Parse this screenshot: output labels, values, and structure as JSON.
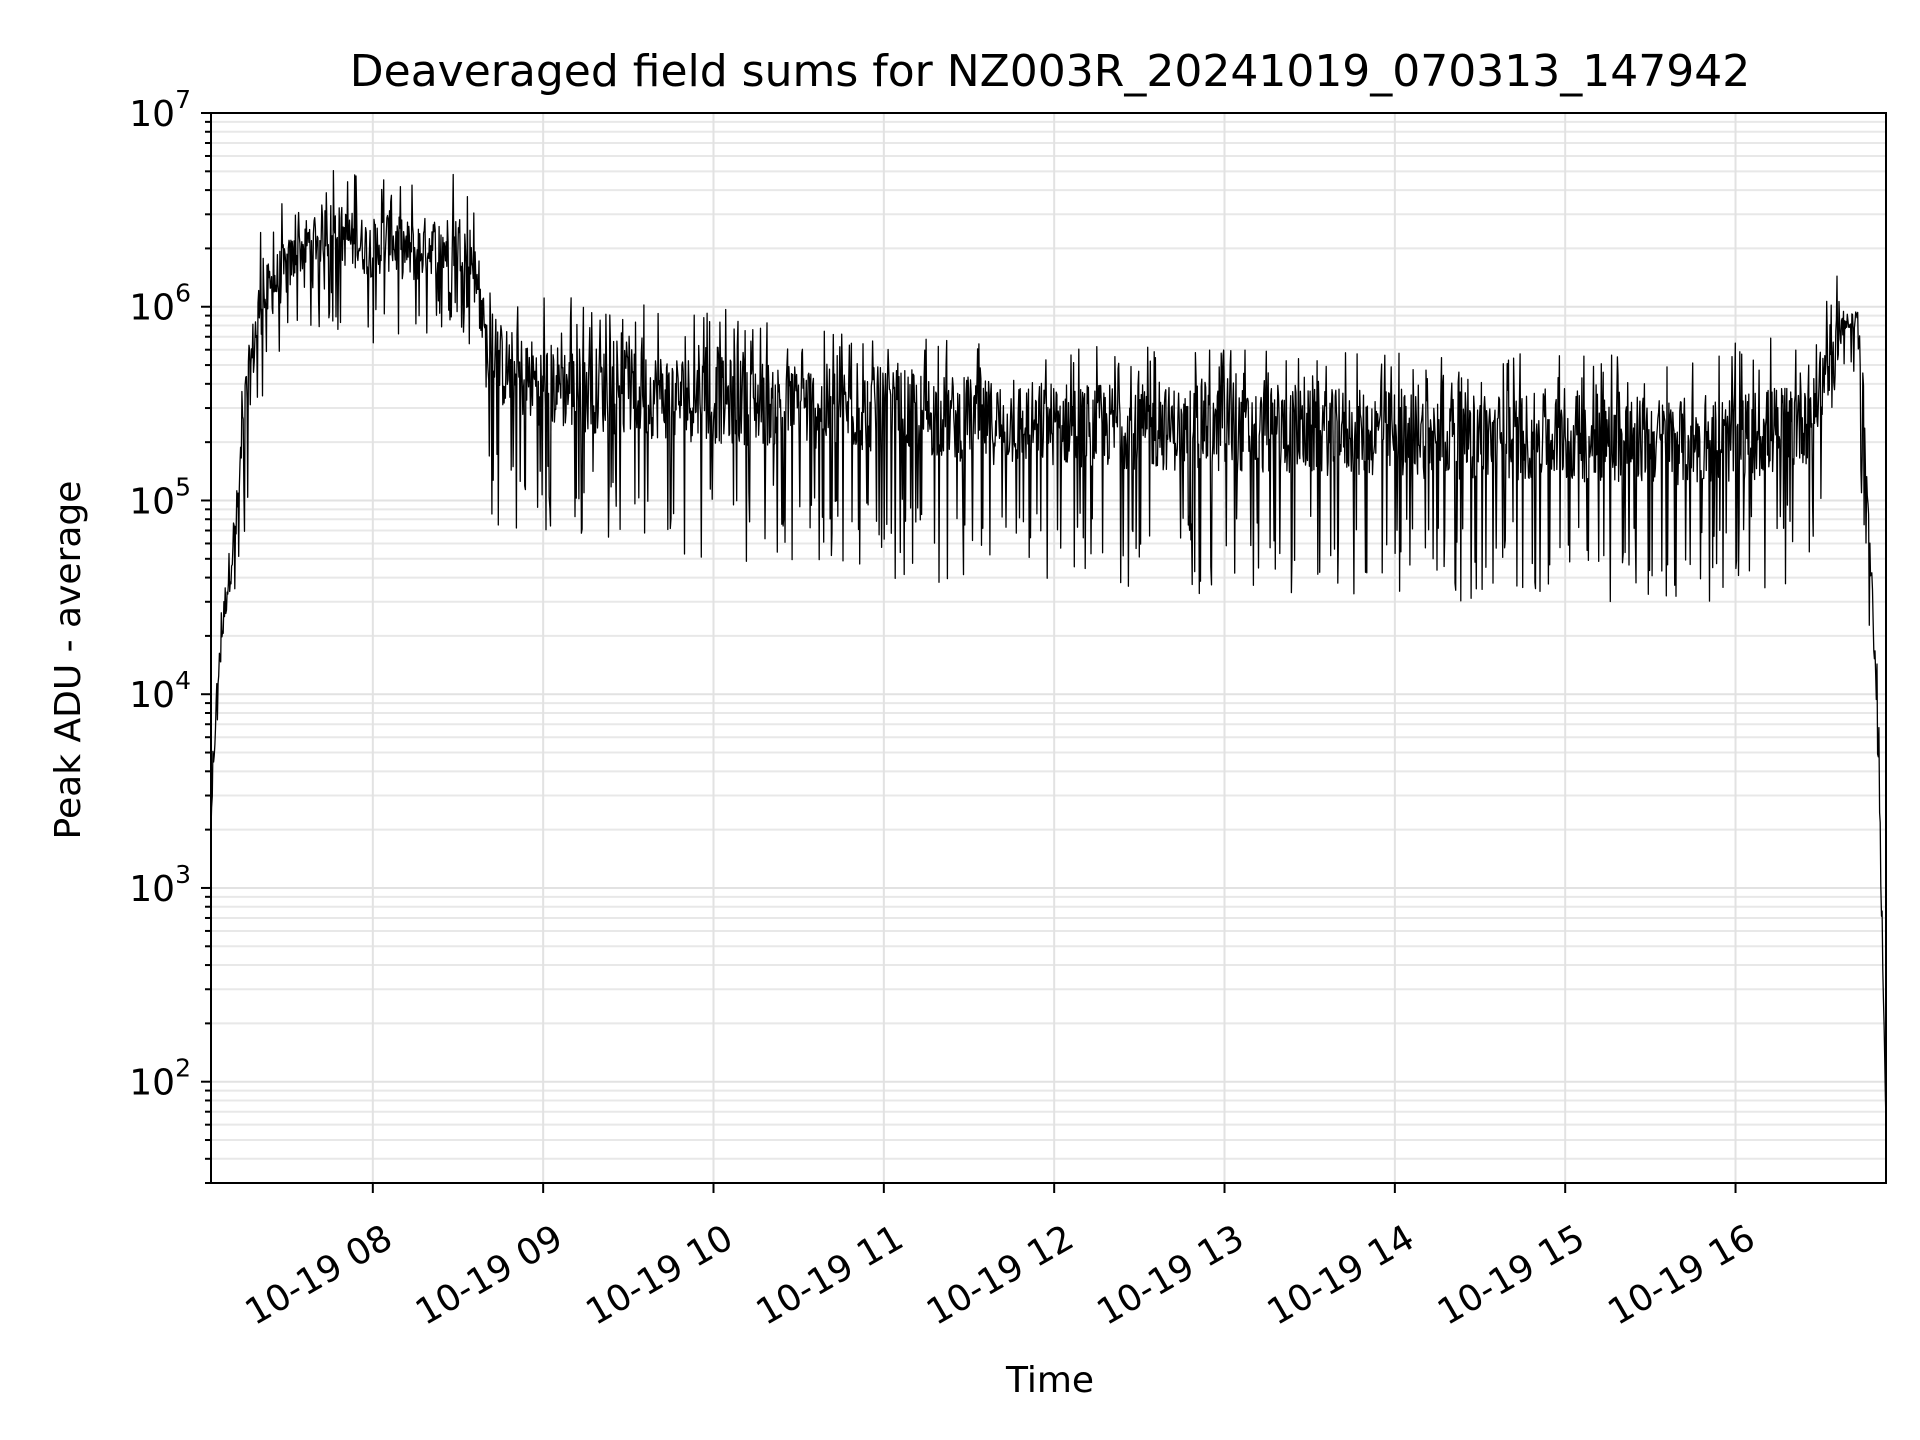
{
  "chart_data": {
    "type": "line",
    "title": "Deaveraged field sums for NZ003R_20241019_070313_147942",
    "xlabel": "Time",
    "ylabel": "Peak ADU - average",
    "y_scale": "log",
    "ylim": [
      30,
      10000000
    ],
    "xlim": [
      "2024-10-19 07:03",
      "2024-10-19 16:53"
    ],
    "grid": "on (major and minor)",
    "line_color": "#000000",
    "x_ticks": [
      {
        "t": "2024-10-19 08:00",
        "label": "10-19 08"
      },
      {
        "t": "2024-10-19 09:00",
        "label": "10-19 09"
      },
      {
        "t": "2024-10-19 10:00",
        "label": "10-19 10"
      },
      {
        "t": "2024-10-19 11:00",
        "label": "10-19 11"
      },
      {
        "t": "2024-10-19 12:00",
        "label": "10-19 12"
      },
      {
        "t": "2024-10-19 13:00",
        "label": "10-19 13"
      },
      {
        "t": "2024-10-19 14:00",
        "label": "10-19 14"
      },
      {
        "t": "2024-10-19 15:00",
        "label": "10-19 15"
      },
      {
        "t": "2024-10-19 16:00",
        "label": "10-19 16"
      }
    ],
    "y_ticks": [
      {
        "value": 100,
        "base": "10",
        "exp": "2"
      },
      {
        "value": 1000,
        "base": "10",
        "exp": "3"
      },
      {
        "value": 10000,
        "base": "10",
        "exp": "4"
      },
      {
        "value": 100000,
        "base": "10",
        "exp": "5"
      },
      {
        "value": 1000000,
        "base": "10",
        "exp": "6"
      },
      {
        "value": 10000000,
        "base": "10",
        "exp": "7"
      }
    ],
    "series": [
      {
        "x": [
          "2024-10-19 07:03",
          "2024-10-19 07:05",
          "2024-10-19 07:08",
          "2024-10-19 07:12",
          "2024-10-19 07:15",
          "2024-10-19 07:20",
          "2024-10-19 07:25",
          "2024-10-19 07:30",
          "2024-10-19 07:35",
          "2024-10-19 07:40",
          "2024-10-19 07:45",
          "2024-10-19 07:50",
          "2024-10-19 07:55",
          "2024-10-19 08:00",
          "2024-10-19 08:05",
          "2024-10-19 08:10",
          "2024-10-19 08:15",
          "2024-10-19 08:20",
          "2024-10-19 08:25",
          "2024-10-19 08:30",
          "2024-10-19 08:35",
          "2024-10-19 08:38",
          "2024-10-19 08:40",
          "2024-10-19 08:45",
          "2024-10-19 08:50",
          "2024-10-19 09:00",
          "2024-10-19 09:10",
          "2024-10-19 09:20",
          "2024-10-19 09:30",
          "2024-10-19 09:40",
          "2024-10-19 09:50",
          "2024-10-19 10:00",
          "2024-10-19 10:15",
          "2024-10-19 10:30",
          "2024-10-19 10:45",
          "2024-10-19 11:00",
          "2024-10-19 11:15",
          "2024-10-19 11:30",
          "2024-10-19 11:45",
          "2024-10-19 12:00",
          "2024-10-19 12:30",
          "2024-10-19 13:00",
          "2024-10-19 13:30",
          "2024-10-19 14:00",
          "2024-10-19 14:30",
          "2024-10-19 15:00",
          "2024-10-19 15:30",
          "2024-10-19 15:50",
          "2024-10-19 16:00",
          "2024-10-19 16:15",
          "2024-10-19 16:25",
          "2024-10-19 16:30",
          "2024-10-19 16:35",
          "2024-10-19 16:40",
          "2024-10-19 16:43",
          "2024-10-19 16:45",
          "2024-10-19 16:47",
          "2024-10-19 16:50",
          "2024-10-19 16:52",
          "2024-10-19 16:53"
        ],
        "y": [
          2000,
          10000,
          30000,
          80000,
          300000,
          1000000,
          1300000,
          1600000,
          2000000,
          2300000,
          2500000,
          2300000,
          2100000,
          2000000,
          2200000,
          2000000,
          1900000,
          2100000,
          2000000,
          2200000,
          1800000,
          900000,
          600000,
          500000,
          450000,
          400000,
          380000,
          370000,
          360000,
          350000,
          340000,
          330000,
          320000,
          310000,
          300000,
          290000,
          280000,
          260000,
          250000,
          250000,
          240000,
          230000,
          225000,
          220000,
          215000,
          210000,
          205000,
          200000,
          210000,
          230000,
          280000,
          400000,
          650000,
          900000,
          800000,
          300000,
          60000,
          10000,
          300,
          60
        ],
        "range_low": [
          2000,
          6000,
          15000,
          30000,
          60000,
          300000,
          400000,
          600000,
          800000,
          700000,
          800000,
          700000,
          700000,
          600000,
          600000,
          600000,
          600000,
          700000,
          700000,
          800000,
          600000,
          150000,
          80000,
          70000,
          70000,
          65000,
          65000,
          62000,
          60000,
          55000,
          52000,
          50000,
          48000,
          45000,
          43000,
          40000,
          38000,
          36000,
          35000,
          35000,
          34000,
          32000,
          32000,
          31000,
          30000,
          30000,
          30000,
          30000,
          32000,
          35000,
          40000,
          60000,
          300000,
          500000,
          300000,
          60000,
          20000,
          3000,
          200,
          50
        ],
        "range_high": [
          3000,
          15000,
          60000,
          200000,
          700000,
          2500000,
          3000000,
          4000000,
          5000000,
          5500000,
          5800000,
          5500000,
          5000000,
          4500000,
          5000000,
          4800000,
          5000000,
          5500000,
          5200000,
          5800000,
          5000000,
          1500000,
          1300000,
          1300000,
          1200000,
          1200000,
          1200000,
          1200000,
          1150000,
          1100000,
          1050000,
          1000000,
          900000,
          850000,
          800000,
          750000,
          700000,
          650000,
          640000,
          630000,
          620000,
          610000,
          600000,
          600000,
          600000,
          590000,
          590000,
          600000,
          650000,
          800000,
          1200000,
          1500000,
          1600000,
          1200000,
          1000000,
          500000,
          80000,
          20000,
          400,
          70
        ]
      }
    ]
  }
}
